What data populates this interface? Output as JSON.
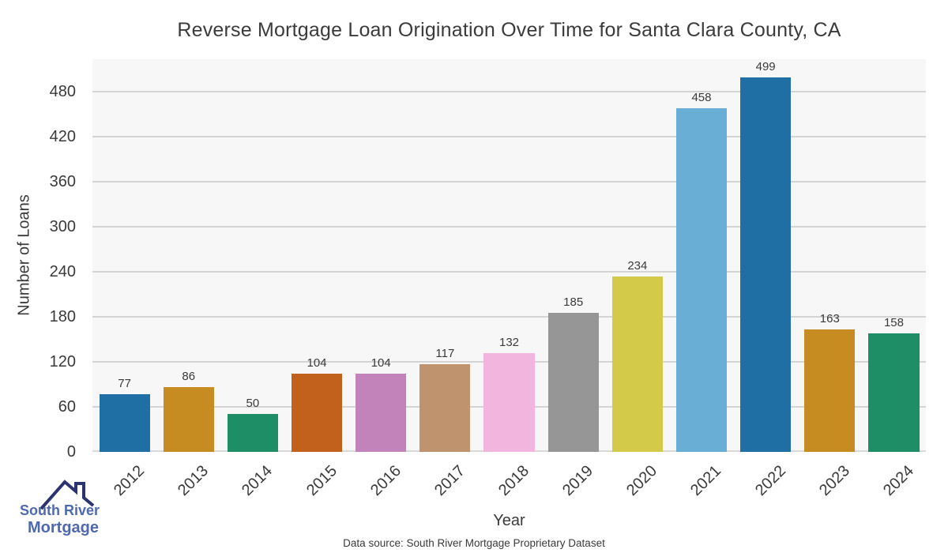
{
  "title": "Reverse Mortgage Loan Origination Over Time for Santa Clara County, CA",
  "chart_data": {
    "type": "bar",
    "title": "Reverse Mortgage Loan Origination Over Time for Santa Clara County, CA",
    "xlabel": "Year",
    "ylabel": "Number of Loans",
    "categories": [
      "2012",
      "2013",
      "2014",
      "2015",
      "2016",
      "2017",
      "2018",
      "2019",
      "2020",
      "2021",
      "2022",
      "2023",
      "2024"
    ],
    "values": [
      77,
      86,
      50,
      104,
      104,
      117,
      132,
      185,
      234,
      458,
      499,
      163,
      158
    ],
    "bar_colors": [
      "#1f6fa4",
      "#c78c21",
      "#1e8e67",
      "#c2611c",
      "#c283ba",
      "#c0936f",
      "#f2b6de",
      "#969696",
      "#d3ca49",
      "#69aed5",
      "#1f6fa4",
      "#c78c21",
      "#1e8e67"
    ],
    "ylim": [
      0,
      523
    ],
    "yticks": [
      0,
      60,
      120,
      180,
      240,
      300,
      360,
      420,
      480
    ],
    "grid": "horizontal",
    "legend": "none",
    "plot_background": "#f7f7f7",
    "grid_color": "#d4d4d4"
  },
  "footer": {
    "source_note": "Data source: South River Mortgage Proprietary Dataset",
    "logo": {
      "line1": "South River",
      "line2": "Mortgage",
      "text_color": "#4e68b1",
      "roof_color": "#2b3470"
    }
  }
}
